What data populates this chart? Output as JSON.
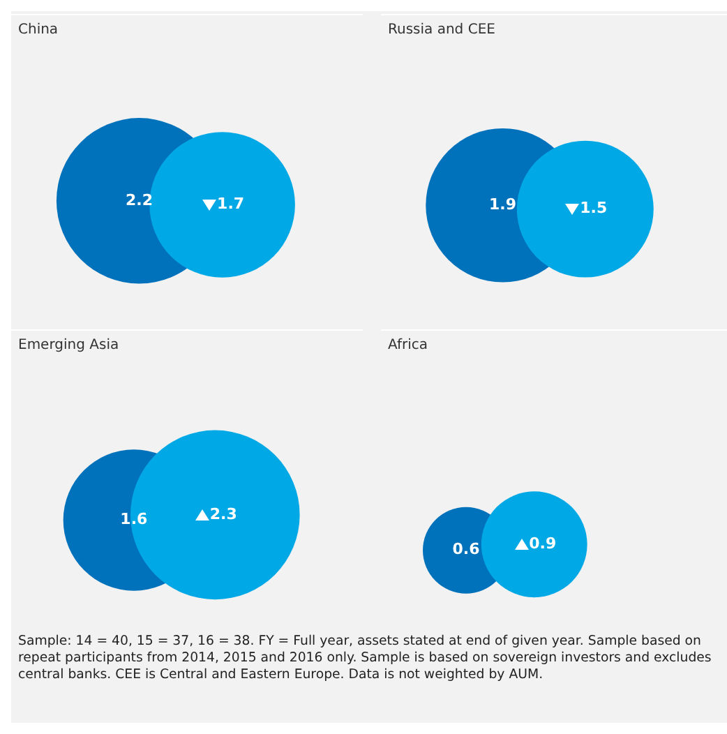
{
  "chart_data": [
    {
      "type": "other",
      "title": "China",
      "categories": [
        null,
        null
      ],
      "values": [
        2.2,
        1.7
      ],
      "colors": [
        "#0072bc",
        "#00a9e6"
      ],
      "data_labels": true
    },
    {
      "type": "other",
      "title": "Russia and CEE",
      "categories": [
        null,
        null
      ],
      "values": [
        1.9,
        1.5
      ],
      "colors": [
        "#0072bc",
        "#00a9e6"
      ],
      "data_labels": true
    },
    {
      "type": "other",
      "title": "Emerging Asia",
      "categories": [
        null,
        null
      ],
      "values": [
        1.6,
        2.3
      ],
      "colors": [
        "#0072bc",
        "#00a9e6"
      ],
      "data_labels": true
    },
    {
      "type": "other",
      "title": "Africa",
      "categories": [
        null,
        null
      ],
      "values": [
        0.6,
        0.9
      ],
      "colors": [
        "#0072bc",
        "#00a9e6"
      ],
      "data_labels": true,
      "annotations": [
        "Sample: 14 = 40, 15 = 37, 16 = 38. FY = Full year, assets stated at end of given year. Sample based on repeat participants from 2014, 2015 and 2016 only. Sample is based on sovereign investors and excludes central banks. CEE is Central and Eastern Europe. Data is not weighted by AUM."
      ]
    }
  ]
}
